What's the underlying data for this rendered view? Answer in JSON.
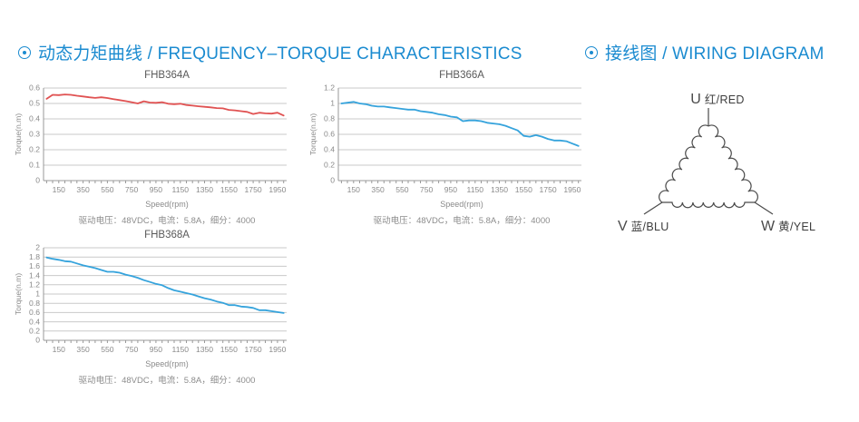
{
  "header_left": {
    "title": "动态力矩曲线 / FREQUENCY–TORQUE CHARACTERISTICS"
  },
  "header_right": {
    "title": "接线图 / WIRING DIAGRAM"
  },
  "chart_data": [
    {
      "type": "line",
      "title": "FHB364A",
      "xlabel": "Speed(rpm)",
      "ylabel": "Torque(n.m)",
      "caption": "驱动电压：48VDC，电流：5.8A，细分：4000",
      "color": "#e05252",
      "ylim": [
        0,
        0.6
      ],
      "ytick_step": 0.1,
      "xlim": [
        25,
        2025
      ],
      "xticks": [
        150,
        350,
        550,
        750,
        950,
        1150,
        1350,
        1550,
        1750,
        1950
      ],
      "xminor_step": 50,
      "grid": true,
      "x": [
        50,
        100,
        150,
        200,
        250,
        300,
        350,
        400,
        450,
        500,
        550,
        600,
        650,
        700,
        750,
        800,
        850,
        900,
        950,
        1000,
        1050,
        1100,
        1150,
        1200,
        1250,
        1300,
        1350,
        1400,
        1450,
        1500,
        1550,
        1600,
        1650,
        1700,
        1750,
        1800,
        1850,
        1900,
        1950,
        2000
      ],
      "y": [
        0.53,
        0.556,
        0.554,
        0.558,
        0.556,
        0.55,
        0.545,
        0.54,
        0.536,
        0.54,
        0.535,
        0.528,
        0.522,
        0.515,
        0.508,
        0.5,
        0.514,
        0.506,
        0.504,
        0.508,
        0.498,
        0.495,
        0.498,
        0.49,
        0.486,
        0.482,
        0.478,
        0.475,
        0.47,
        0.468,
        0.458,
        0.455,
        0.45,
        0.445,
        0.432,
        0.44,
        0.436,
        0.434,
        0.44,
        0.422
      ]
    },
    {
      "type": "line",
      "title": "FHB366A",
      "xlabel": "Speed(rpm)",
      "ylabel": "Torque(n.m)",
      "caption": "驱动电压：48VDC，电流：5.8A，细分：4000",
      "color": "#35a3dc",
      "ylim": [
        0,
        1.2
      ],
      "ytick_step": 0.2,
      "xlim": [
        25,
        2025
      ],
      "xticks": [
        150,
        350,
        550,
        750,
        950,
        1150,
        1350,
        1550,
        1750,
        1950
      ],
      "xminor_step": 50,
      "grid": true,
      "x": [
        50,
        100,
        150,
        200,
        250,
        300,
        350,
        400,
        450,
        500,
        550,
        600,
        650,
        700,
        750,
        800,
        850,
        900,
        950,
        1000,
        1050,
        1100,
        1150,
        1200,
        1250,
        1300,
        1350,
        1400,
        1450,
        1500,
        1550,
        1600,
        1650,
        1700,
        1750,
        1800,
        1850,
        1900,
        1950,
        2000
      ],
      "y": [
        1.0,
        1.01,
        1.02,
        1.0,
        0.99,
        0.97,
        0.96,
        0.96,
        0.95,
        0.94,
        0.93,
        0.92,
        0.92,
        0.9,
        0.89,
        0.88,
        0.86,
        0.85,
        0.83,
        0.82,
        0.77,
        0.78,
        0.78,
        0.77,
        0.75,
        0.74,
        0.73,
        0.71,
        0.68,
        0.65,
        0.58,
        0.57,
        0.59,
        0.57,
        0.54,
        0.52,
        0.52,
        0.51,
        0.48,
        0.45
      ]
    },
    {
      "type": "line",
      "title": "FHB368A",
      "xlabel": "Speed(rpm)",
      "ylabel": "Torque(n.m)",
      "caption": "驱动电压：48VDC，电流：5.8A，细分：4000",
      "color": "#35a3dc",
      "ylim": [
        0,
        2
      ],
      "ytick_step": 0.2,
      "xlim": [
        25,
        2025
      ],
      "xticks": [
        150,
        350,
        550,
        750,
        950,
        1150,
        1350,
        1550,
        1750,
        1950
      ],
      "xminor_step": 50,
      "grid": true,
      "x": [
        50,
        100,
        150,
        200,
        250,
        300,
        350,
        400,
        450,
        500,
        550,
        600,
        650,
        700,
        750,
        800,
        850,
        900,
        950,
        1000,
        1050,
        1100,
        1150,
        1200,
        1250,
        1300,
        1350,
        1400,
        1450,
        1500,
        1550,
        1600,
        1650,
        1700,
        1750,
        1800,
        1850,
        1900,
        1950,
        2000
      ],
      "y": [
        1.79,
        1.76,
        1.74,
        1.71,
        1.7,
        1.66,
        1.62,
        1.59,
        1.56,
        1.52,
        1.48,
        1.48,
        1.46,
        1.42,
        1.39,
        1.35,
        1.3,
        1.26,
        1.22,
        1.19,
        1.13,
        1.08,
        1.05,
        1.02,
        0.99,
        0.95,
        0.91,
        0.88,
        0.84,
        0.81,
        0.76,
        0.76,
        0.73,
        0.72,
        0.7,
        0.65,
        0.65,
        0.63,
        0.61,
        0.59
      ]
    }
  ],
  "wiring": {
    "labels": [
      {
        "terminal": "U",
        "text": "U 红/RED"
      },
      {
        "terminal": "V",
        "text": "V 蓝/BLU"
      },
      {
        "terminal": "W",
        "text": "W 黄/YEL"
      }
    ],
    "line_color": "#4a4a4a"
  },
  "colors": {
    "accent_blue": "#1b8bd0",
    "grid": "#c9c9c9",
    "axis": "#999999",
    "tick_text": "#8a8a8a"
  }
}
